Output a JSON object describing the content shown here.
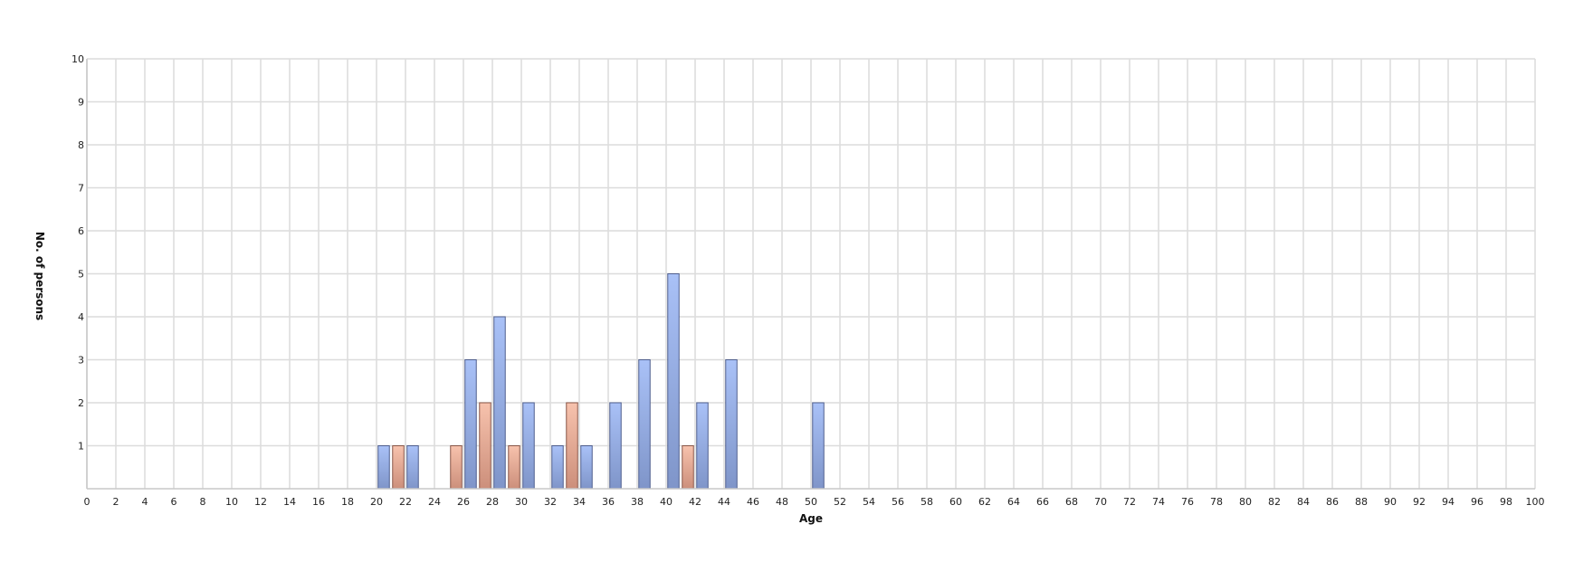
{
  "chart_data": {
    "type": "bar",
    "title": "",
    "xlabel": "Age",
    "ylabel": "No. of persons",
    "xlim": [
      0,
      100
    ],
    "ylim": [
      0,
      10
    ],
    "x_ticks": [
      0,
      2,
      4,
      6,
      8,
      10,
      12,
      14,
      16,
      18,
      20,
      22,
      24,
      26,
      28,
      30,
      32,
      34,
      36,
      38,
      40,
      42,
      44,
      46,
      48,
      50,
      52,
      54,
      56,
      58,
      60,
      62,
      64,
      66,
      68,
      70,
      72,
      74,
      76,
      78,
      80,
      82,
      84,
      86,
      88,
      90,
      92,
      94,
      96,
      98,
      100
    ],
    "y_ticks": [
      1,
      2,
      3,
      4,
      5,
      6,
      7,
      8,
      9,
      10
    ],
    "grid": true,
    "legend": false,
    "series": [
      {
        "color": "#9db6f0",
        "points": [
          {
            "x": 20,
            "y": 1
          },
          {
            "x": 22,
            "y": 1
          },
          {
            "x": 26,
            "y": 3
          },
          {
            "x": 28,
            "y": 4
          },
          {
            "x": 30,
            "y": 2
          },
          {
            "x": 32,
            "y": 1
          },
          {
            "x": 34,
            "y": 1
          },
          {
            "x": 36,
            "y": 2
          },
          {
            "x": 38,
            "y": 3
          },
          {
            "x": 40,
            "y": 5
          },
          {
            "x": 42,
            "y": 2
          },
          {
            "x": 44,
            "y": 3
          },
          {
            "x": 50,
            "y": 2
          }
        ]
      },
      {
        "color": "#f0b6a0",
        "points": [
          {
            "x": 21,
            "y": 1
          },
          {
            "x": 25,
            "y": 1
          },
          {
            "x": 27,
            "y": 2
          },
          {
            "x": 29,
            "y": 1
          },
          {
            "x": 33,
            "y": 2
          },
          {
            "x": 41,
            "y": 1
          }
        ]
      }
    ]
  }
}
